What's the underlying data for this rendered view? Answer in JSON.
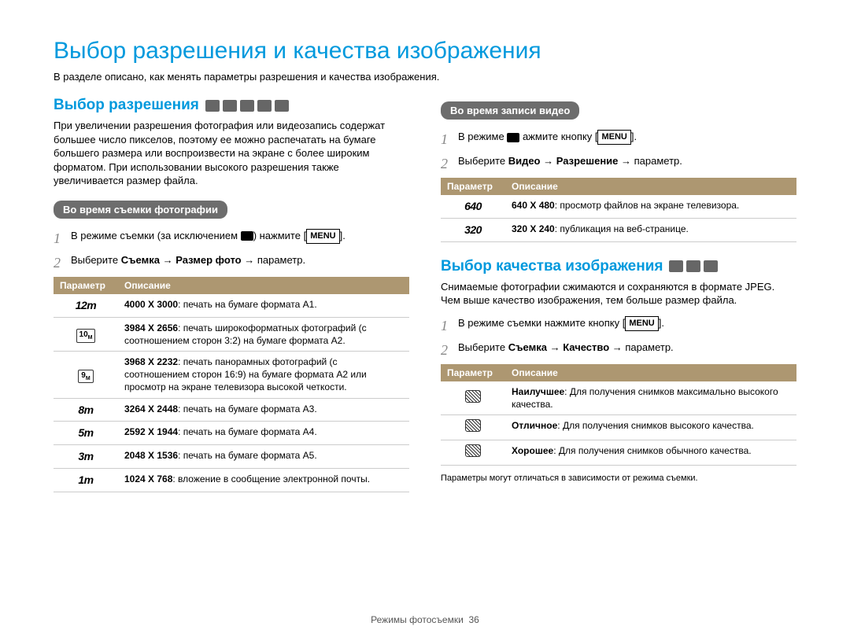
{
  "page_title": "Выбор разрешения и качества изображения",
  "intro": "В разделе описано, как менять параметры разрешения и качества изображения.",
  "left": {
    "section_title": "Выбор разрешения",
    "desc": "При увеличении разрешения фотография или видеозапись содержат большее число пикселов, поэтому ее можно распечатать на бумаге большего размера или воспроизвести на экране с более широким форматом. При использовании высокого разрешения также увеличивается размер файла.",
    "sub_header": "Во время съемки фотографии",
    "step1_a": "В режиме съемки (за исключением ",
    "step1_b": ") нажмите [",
    "step1_c": "].",
    "menu_label": "MENU",
    "step2_a": "Выберите ",
    "step2_b": "Съемка",
    "step2_c": " → ",
    "step2_d": "Размер фото",
    "step2_e": " → параметр.",
    "th_param": "Параметр",
    "th_desc": "Описание",
    "rows": [
      {
        "icon": "12m",
        "bold": "4000 X 3000",
        "txt": ": печать на бумаге формата A1."
      },
      {
        "icon": "10m_box",
        "bold": "3984 X 2656",
        "txt": ": печать широкоформатных фотографий (с соотношением сторон 3:2) на бумаге формата A2."
      },
      {
        "icon": "9m_box",
        "bold": "3968 X 2232",
        "txt": ": печать панорамных фотографий (с соотношением сторон 16:9) на бумаге формата A2 или просмотр на экране телевизора высокой четкости."
      },
      {
        "icon": "8m",
        "bold": "3264 X 2448",
        "txt": ": печать на бумаге формата A3."
      },
      {
        "icon": "5m",
        "bold": "2592 X 1944",
        "txt": ": печать на бумаге формата A4."
      },
      {
        "icon": "3m",
        "bold": "2048 X 1536",
        "txt": ": печать на бумаге формата A5."
      },
      {
        "icon": "1m",
        "bold": "1024 X 768",
        "txt": ": вложение в сообщение электронной почты."
      }
    ]
  },
  "right_top": {
    "sub_header": "Во время записи видео",
    "step1_a": "В режиме ",
    "step1_b": " ажмите кнопку [",
    "step1_c": "].",
    "menu_label": "MENU",
    "step2_a": "Выберите ",
    "step2_b": "Видео",
    "step2_c": " → ",
    "step2_d": "Разрешение",
    "step2_e": " → параметр.",
    "th_param": "Параметр",
    "th_desc": "Описание",
    "rows": [
      {
        "icon": "640",
        "bold": "640 X 480",
        "txt": ": просмотр файлов на экране телевизора."
      },
      {
        "icon": "320",
        "bold": "320 X 240",
        "txt": ": публикация на веб-странице."
      }
    ]
  },
  "right_bottom": {
    "section_title": "Выбор качества изображения",
    "desc": "Снимаемые фотографии сжимаются и сохраняются в формате JPEG. Чем выше качество изображения, тем больше размер файла.",
    "step1_a": "В режиме съемки нажмите кнопку [",
    "step1_b": "].",
    "menu_label": "MENU",
    "step2_a": "Выберите ",
    "step2_b": "Съемка",
    "step2_c": " → ",
    "step2_d": "Качество",
    "step2_e": " → параметр.",
    "th_param": "Параметр",
    "th_desc": "Описание",
    "rows": [
      {
        "bold": "Наилучшее",
        "txt": ": Для получения снимков максимально высокого качества."
      },
      {
        "bold": "Отличное",
        "txt": ": Для получения снимков высокого качества."
      },
      {
        "bold": "Хорошее",
        "txt": ": Для получения снимков обычного качества."
      }
    ],
    "footnote": "Параметры могут отличаться в зависимости от режима съемки."
  },
  "footer": "Режимы фотосъемки",
  "page_num": "36"
}
